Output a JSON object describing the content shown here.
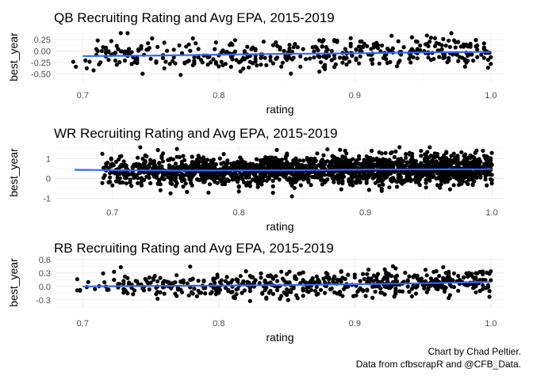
{
  "caption": {
    "line1": "Chart by Chad Peltier.",
    "line2": "Data from cfbscrapR and @CFB_Data."
  },
  "colors": {
    "points": "#000000",
    "smooth": "#3366ff",
    "grid_major": "#ebebeb",
    "grid_minor": "#f5f5f5",
    "background": "#ffffff"
  },
  "chart_data": [
    {
      "type": "scatter",
      "title": "QB Recruiting Rating and Avg EPA, 2015-2019",
      "xlabel": "rating",
      "ylabel": "best_year",
      "xlim": [
        0.68,
        1.01
      ],
      "ylim": [
        -0.68,
        0.42
      ],
      "xticks": [
        0.7,
        0.8,
        0.9,
        1.0
      ],
      "xtick_labels": [
        "0.7",
        "0.8",
        "0.9",
        "1.0"
      ],
      "yticks": [
        -0.5,
        -0.25,
        0.0,
        0.25
      ],
      "ytick_labels": [
        "-0.50",
        "-0.25",
        "0.00",
        "0.25"
      ],
      "grid": true,
      "legend": "none",
      "n_points": 420,
      "y_center": -0.05,
      "y_spread": 0.17,
      "smooth": {
        "x": [
          0.7,
          0.75,
          0.8,
          0.85,
          0.9,
          0.95,
          1.0
        ],
        "y": [
          -0.11,
          -0.1,
          -0.08,
          -0.06,
          -0.05,
          -0.03,
          -0.02
        ]
      },
      "seed": 11
    },
    {
      "type": "scatter",
      "title": "WR Recruiting Rating and Avg EPA, 2015-2019",
      "xlabel": "rating",
      "ylabel": "best_year",
      "xlim": [
        0.655,
        1.01
      ],
      "ylim": [
        -1.05,
        1.65
      ],
      "xticks": [
        0.7,
        0.8,
        0.9,
        1.0
      ],
      "xtick_labels": [
        "0.7",
        "0.8",
        "0.9",
        "1.0"
      ],
      "yticks": [
        -1,
        0,
        1
      ],
      "ytick_labels": [
        "-1",
        "0",
        "1"
      ],
      "grid": true,
      "legend": "none",
      "n_points": 2000,
      "y_center": 0.42,
      "y_spread": 0.36,
      "smooth": {
        "x": [
          0.67,
          0.7,
          0.75,
          0.8,
          0.85,
          0.9,
          0.95,
          1.0
        ],
        "y": [
          0.44,
          0.42,
          0.4,
          0.41,
          0.42,
          0.45,
          0.46,
          0.47
        ]
      },
      "seed": 23
    },
    {
      "type": "scatter",
      "title": "RB Recruiting Rating and Avg EPA, 2015-2019",
      "xlabel": "rating",
      "ylabel": "best_year",
      "xlim": [
        0.68,
        1.01
      ],
      "ylim": [
        -0.48,
        0.65
      ],
      "xticks": [
        0.7,
        0.8,
        0.9,
        1.0
      ],
      "xtick_labels": [
        "0.7",
        "0.8",
        "0.9",
        "1.0"
      ],
      "yticks": [
        -0.3,
        0.0,
        0.3,
        0.6
      ],
      "ytick_labels": [
        "-0.3",
        "0.0",
        "0.3",
        "0.6"
      ],
      "grid": true,
      "legend": "none",
      "n_points": 560,
      "y_center": 0.03,
      "y_spread": 0.14,
      "smooth": {
        "x": [
          0.7,
          0.75,
          0.8,
          0.85,
          0.9,
          0.95,
          1.0
        ],
        "y": [
          0.0,
          0.01,
          0.02,
          0.03,
          0.05,
          0.07,
          0.1
        ]
      },
      "seed": 37
    }
  ]
}
